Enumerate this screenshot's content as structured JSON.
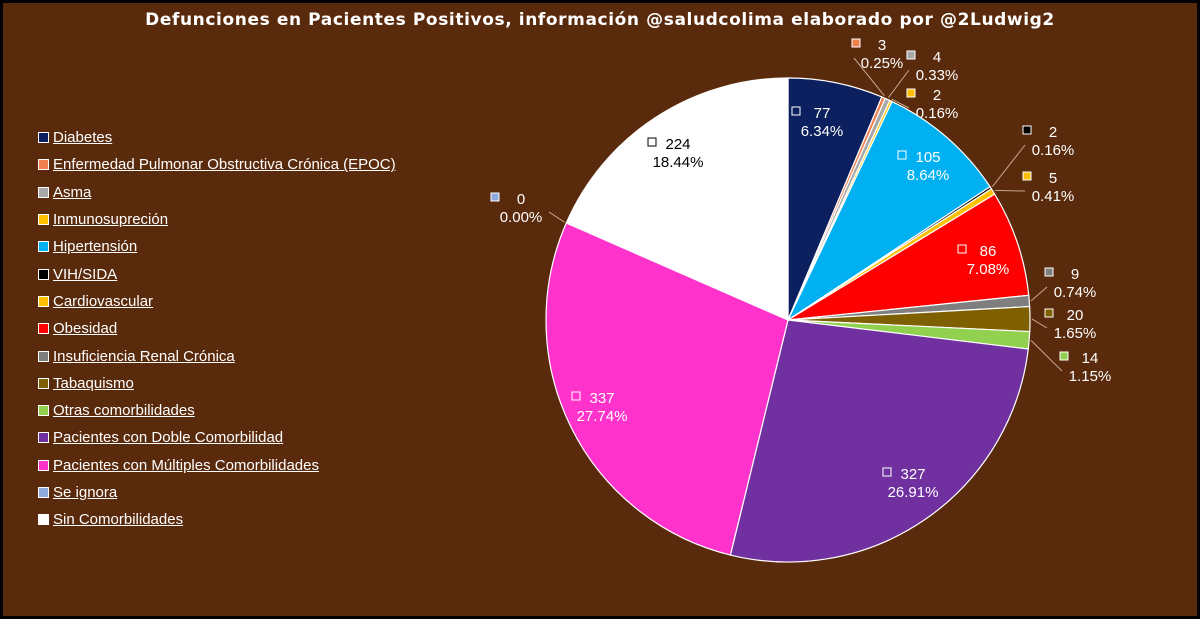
{
  "chart_data": {
    "type": "pie",
    "title": "Defunciones en Pacientes Positivos, información @saludcolima elaborado por @2Ludwig2",
    "legend_position": "left",
    "slices": [
      {
        "label": "Diabetes",
        "value": 77,
        "percent": "6.34%",
        "color": "#0c1f5e"
      },
      {
        "label": "Enfermedad Pulmonar Obstructiva Crónica (EPOC)",
        "value": 3,
        "percent": "0.25%",
        "color": "#f08050"
      },
      {
        "label": "Asma",
        "value": 4,
        "percent": "0.33%",
        "color": "#a8a8a8"
      },
      {
        "label": "Inmunosupreción",
        "value": 2,
        "percent": "0.16%",
        "color": "#ffc000"
      },
      {
        "label": "Hipertensión",
        "value": 105,
        "percent": "8.64%",
        "color": "#00b0f0"
      },
      {
        "label": "VIH/SIDA",
        "value": 2,
        "percent": "0.16%",
        "color": "#000000"
      },
      {
        "label": "Cardiovascular",
        "value": 5,
        "percent": "0.41%",
        "color": "#ffc000"
      },
      {
        "label": "Obesidad",
        "value": 86,
        "percent": "7.08%",
        "color": "#ff0000"
      },
      {
        "label": "Insuficiencia Renal Crónica",
        "value": 9,
        "percent": "0.74%",
        "color": "#7f7f7f"
      },
      {
        "label": "Tabaquismo",
        "value": 20,
        "percent": "1.65%",
        "color": "#7f6000"
      },
      {
        "label": "Otras comorbilidades",
        "value": 14,
        "percent": "1.15%",
        "color": "#92d050"
      },
      {
        "label": "Pacientes con Doble Comorbilidad",
        "value": 327,
        "percent": "26.91%",
        "color": "#7030a0"
      },
      {
        "label": "Pacientes con Múltiples Comorbilidades",
        "value": 337,
        "percent": "27.74%",
        "color": "#ff33cc"
      },
      {
        "label": "Se ignora",
        "value": 0,
        "percent": "0.00%",
        "color": "#8eaadb"
      },
      {
        "label": "Sin Comorbilidades",
        "value": 224,
        "percent": "18.44%",
        "color": "#ffffff"
      }
    ]
  }
}
